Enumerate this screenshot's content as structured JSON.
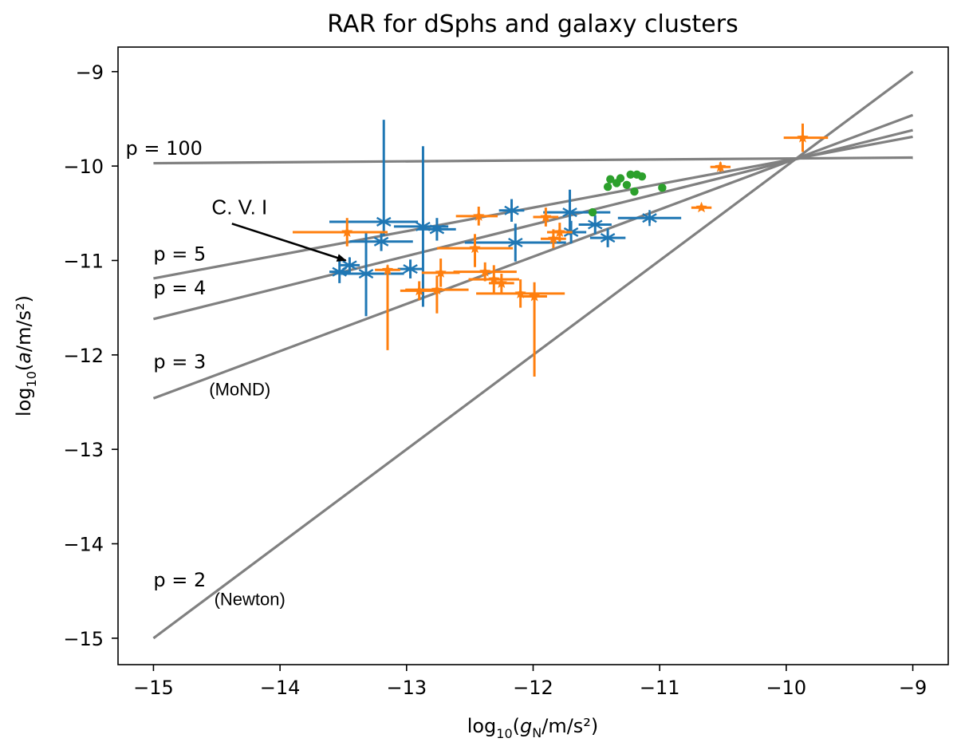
{
  "chart_data": {
    "type": "scatter",
    "title": "RAR for dSphs and galaxy clusters",
    "xlim": [
      -15.28,
      -8.72
    ],
    "ylim": [
      -15.28,
      -8.74
    ],
    "xticks": [
      -15,
      -14,
      -13,
      -12,
      -11,
      -10,
      -9
    ],
    "yticks": [
      -15,
      -14,
      -13,
      -12,
      -11,
      -10,
      -9
    ],
    "xlabel": {
      "prefix": "log",
      "sub": "10",
      "var": "g",
      "varsub": "N",
      "num": "m",
      "den": "s²"
    },
    "ylabel": {
      "prefix": "log",
      "sub": "10",
      "var": "a",
      "num": "m",
      "den": "s²"
    },
    "grid": false,
    "legend": "none",
    "colors": {
      "line": "#808080",
      "blue": "#1f77b4",
      "orange": "#ff7f0e",
      "green": "#2ca02c",
      "arrow": "#000000"
    },
    "theory_lines": [
      {
        "p": 100,
        "x": [
          -15,
          -9
        ],
        "y": [
          -9.97,
          -9.91
        ]
      },
      {
        "p": 5,
        "x": [
          -15,
          -9
        ],
        "y": [
          -11.19,
          -9.69
        ]
      },
      {
        "p": 4,
        "x": [
          -15,
          -9
        ],
        "y": [
          -11.62,
          -9.62
        ]
      },
      {
        "p": 3,
        "x": [
          -15,
          -9
        ],
        "y": [
          -12.46,
          -9.46
        ]
      },
      {
        "p": 2,
        "x": [
          -15,
          -9
        ],
        "y": [
          -15.0,
          -9.0
        ]
      }
    ],
    "line_labels": [
      {
        "text": "p = 100",
        "x": -15.22,
        "y": -9.88,
        "font": "dv"
      },
      {
        "text": "p = 5",
        "x": -15.0,
        "y": -11.0,
        "font": "dv"
      },
      {
        "text": "p = 4",
        "x": -15.0,
        "y": -11.36,
        "font": "dv"
      },
      {
        "text": "p = 3",
        "x": -15.0,
        "y": -12.14,
        "font": "dv"
      },
      {
        "text": "(MoND)",
        "x": -14.56,
        "y": -12.43,
        "font": "lib"
      },
      {
        "text": "p = 2",
        "x": -15.0,
        "y": -14.45,
        "font": "dv"
      },
      {
        "text": "(Newton)",
        "x": -14.52,
        "y": -14.65,
        "font": "lib"
      }
    ],
    "annotation": {
      "text": "C. V. I",
      "text_x": -14.54,
      "text_y": -10.51,
      "arrow_from": [
        -14.38,
        -10.61
      ],
      "arrow_to": [
        -13.48,
        -11.0
      ]
    },
    "series": [
      {
        "marker": "x-star",
        "color": "blue",
        "points": [
          {
            "x": -13.53,
            "y": -11.12,
            "xerr": [
              0.08,
              0.08
            ],
            "yerr": [
              0.12,
              0.12
            ]
          },
          {
            "x": -13.45,
            "y": -11.05,
            "xerr": [
              0.08,
              0.08
            ],
            "yerr": [
              0.08,
              0.08
            ]
          },
          {
            "x": -13.32,
            "y": -11.14,
            "xerr": [
              0.2,
              0.3
            ],
            "yerr": [
              0.45,
              0.45
            ]
          },
          {
            "x": -13.2,
            "y": -10.8,
            "xerr": [
              0.25,
              0.25
            ],
            "yerr": [
              0.1,
              0.1
            ]
          },
          {
            "x": -13.18,
            "y": -10.59,
            "xerr": [
              0.43,
              0.27
            ],
            "yerr": [
              0.15,
              1.08
            ]
          },
          {
            "x": -12.97,
            "y": -11.09,
            "xerr": [
              0.1,
              0.1
            ],
            "yerr": [
              0.1,
              0.1
            ]
          },
          {
            "x": -12.87,
            "y": -10.64,
            "xerr": [
              0.23,
              0.2
            ],
            "yerr": [
              0.85,
              0.85
            ]
          },
          {
            "x": -12.76,
            "y": -10.67,
            "xerr": [
              0.15,
              0.15
            ],
            "yerr": [
              0.12,
              0.12
            ]
          },
          {
            "x": -12.17,
            "y": -10.47,
            "xerr": [
              0.1,
              0.1
            ],
            "yerr": [
              0.12,
              0.12
            ]
          },
          {
            "x": -12.14,
            "y": -10.81,
            "xerr": [
              0.4,
              0.4
            ],
            "yerr": [
              0.2,
              0.2
            ]
          },
          {
            "x": -11.71,
            "y": -10.49,
            "xerr": [
              0.21,
              0.32
            ],
            "yerr": [
              0.24,
              0.24
            ]
          },
          {
            "x": -11.7,
            "y": -10.7,
            "xerr": [
              0.12,
              0.12
            ],
            "yerr": [
              0.12,
              0.12
            ]
          },
          {
            "x": -11.51,
            "y": -10.62,
            "xerr": [
              0.13,
              0.13
            ],
            "yerr": [
              0.1,
              0.1
            ]
          },
          {
            "x": -11.41,
            "y": -10.76,
            "xerr": [
              0.14,
              0.14
            ],
            "yerr": [
              0.1,
              0.1
            ]
          },
          {
            "x": -11.08,
            "y": -10.55,
            "xerr": [
              0.25,
              0.25
            ],
            "yerr": [
              0.05,
              0.05
            ]
          }
        ]
      },
      {
        "marker": "star",
        "color": "orange",
        "points": [
          {
            "x": -13.47,
            "y": -10.7,
            "xerr": [
              0.43,
              0.32
            ],
            "yerr": [
              0.15,
              0.15
            ]
          },
          {
            "x": -13.15,
            "y": -11.1,
            "xerr": [
              0.1,
              0.1
            ],
            "yerr": [
              0.85,
              0.05
            ]
          },
          {
            "x": -12.9,
            "y": -11.32,
            "xerr": [
              0.15,
              0.15
            ],
            "yerr": [
              0.1,
              0.1
            ]
          },
          {
            "x": -12.76,
            "y": -11.31,
            "xerr": [
              0.25,
              0.25
            ],
            "yerr": [
              0.25,
              0.15
            ]
          },
          {
            "x": -12.73,
            "y": -11.13,
            "xerr": [
              0.15,
              0.15
            ],
            "yerr": [
              0.15,
              0.15
            ]
          },
          {
            "x": -12.46,
            "y": -10.87,
            "xerr": [
              0.3,
              0.3
            ],
            "yerr": [
              0.2,
              0.15
            ]
          },
          {
            "x": -12.43,
            "y": -10.53,
            "xerr": [
              0.18,
              0.15
            ],
            "yerr": [
              0.1,
              0.1
            ]
          },
          {
            "x": -12.38,
            "y": -11.12,
            "xerr": [
              0.25,
              0.25
            ],
            "yerr": [
              0.1,
              0.1
            ]
          },
          {
            "x": -12.31,
            "y": -11.2,
            "xerr": [
              0.2,
              0.2
            ],
            "yerr": [
              0.15,
              0.15
            ]
          },
          {
            "x": -12.25,
            "y": -11.24,
            "xerr": [
              0.1,
              0.1
            ],
            "yerr": [
              0.1,
              0.1
            ]
          },
          {
            "x": -12.1,
            "y": -11.35,
            "xerr": [
              0.35,
              0.35
            ],
            "yerr": [
              0.15,
              0.15
            ]
          },
          {
            "x": -11.99,
            "y": -11.38,
            "xerr": [
              0.1,
              0.1
            ],
            "yerr": [
              0.85,
              0.15
            ]
          },
          {
            "x": -11.9,
            "y": -10.54,
            "xerr": [
              0.1,
              0.1
            ],
            "yerr": [
              0.1,
              0.1
            ]
          },
          {
            "x": -11.84,
            "y": -10.77,
            "xerr": [
              0.1,
              0.1
            ],
            "yerr": [
              0.1,
              0.1
            ]
          },
          {
            "x": -11.79,
            "y": -10.7,
            "xerr": [
              0.1,
              0.1
            ],
            "yerr": [
              0.1,
              0.1
            ]
          },
          {
            "x": -10.67,
            "y": -10.44,
            "xerr": [
              0.08,
              0.08
            ],
            "yerr": [
              0.03,
              0.03
            ]
          },
          {
            "x": -10.52,
            "y": -10.01,
            "xerr": [
              0.08,
              0.08
            ],
            "yerr": [
              0.05,
              0.05
            ]
          },
          {
            "x": -9.87,
            "y": -9.7,
            "xerr": [
              0.15,
              0.2
            ],
            "yerr": [
              0.15,
              0.15
            ]
          }
        ]
      },
      {
        "marker": "circle",
        "color": "green",
        "points": [
          {
            "x": -11.53,
            "y": -10.49
          },
          {
            "x": -11.41,
            "y": -10.22
          },
          {
            "x": -11.39,
            "y": -10.14
          },
          {
            "x": -11.34,
            "y": -10.18
          },
          {
            "x": -11.26,
            "y": -10.2
          },
          {
            "x": -11.23,
            "y": -10.09
          },
          {
            "x": -11.18,
            "y": -10.09
          },
          {
            "x": -11.2,
            "y": -10.27
          },
          {
            "x": -11.14,
            "y": -10.11
          },
          {
            "x": -11.31,
            "y": -10.13
          },
          {
            "x": -10.98,
            "y": -10.23
          }
        ]
      }
    ]
  }
}
